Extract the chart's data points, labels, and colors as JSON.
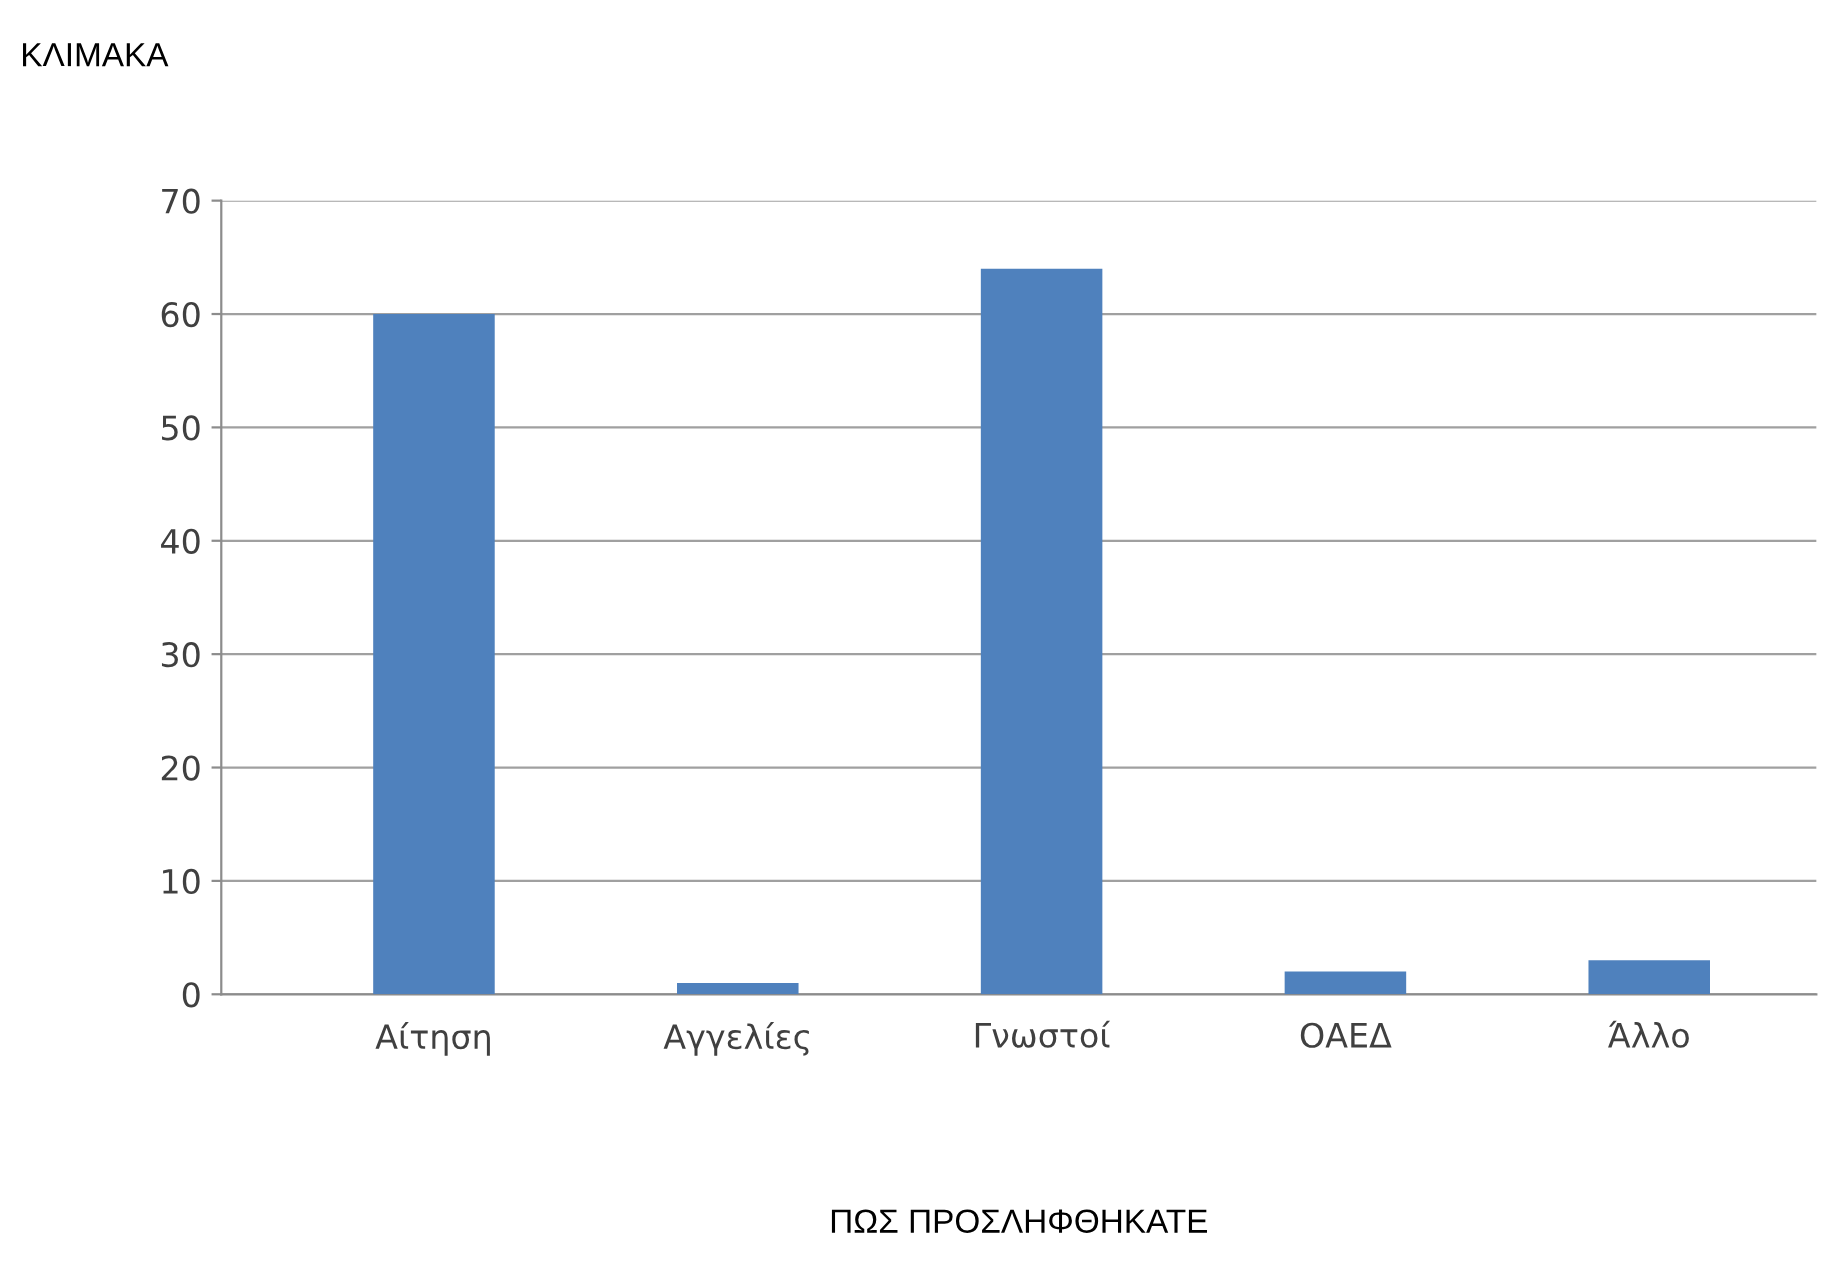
{
  "chart_data": {
    "type": "bar",
    "title": "ΚΛΙΜΑΚΑ",
    "xlabel": "ΠΩΣ ΠΡΟΣΛΗΦΘΗΚΑΤΕ",
    "categories": [
      "Αίτηση",
      "Αγγελίες",
      "Γνωστοί",
      "ΟΑΕΔ",
      "Άλλο"
    ],
    "values": [
      60,
      1,
      64,
      2,
      3
    ],
    "color": "#4f81bd",
    "ylim": [
      0,
      70
    ],
    "yticks": [
      0,
      10,
      20,
      30,
      40,
      50,
      60,
      70
    ],
    "grid": "y",
    "legend": false
  }
}
